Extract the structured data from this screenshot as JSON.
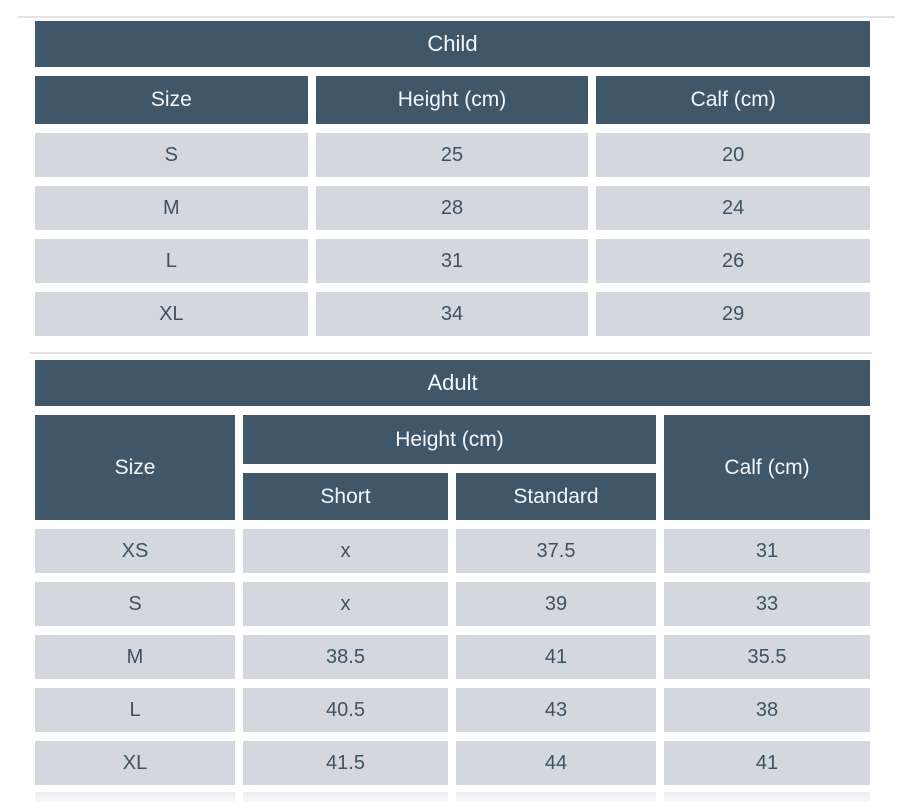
{
  "colors": {
    "header_bg": "#405669",
    "header_text": "#f3f7f9",
    "cell_bg": "#d4d7dd",
    "cell_text": "#3d5365",
    "gap": "#ffffff",
    "top_line": "#e2e3e5",
    "bottom_strip": "#eaecef"
  },
  "child_table": {
    "title": "Child",
    "columns": [
      "Size",
      "Height (cm)",
      "Calf (cm)"
    ],
    "rows": [
      [
        "S",
        "25",
        "20"
      ],
      [
        "M",
        "28",
        "24"
      ],
      [
        "L",
        "31",
        "26"
      ],
      [
        "XL",
        "34",
        "29"
      ]
    ]
  },
  "adult_table": {
    "title": "Adult",
    "col_size": "Size",
    "col_height_group": "Height (cm)",
    "col_calf": "Calf (cm)",
    "subcols": [
      "Short",
      "Standard"
    ],
    "rows": [
      [
        "XS",
        "x",
        "37.5",
        "31"
      ],
      [
        "S",
        "x",
        "39",
        "33"
      ],
      [
        "M",
        "38.5",
        "41",
        "35.5"
      ],
      [
        "L",
        "40.5",
        "43",
        "38"
      ],
      [
        "XL",
        "41.5",
        "44",
        "41"
      ]
    ]
  }
}
